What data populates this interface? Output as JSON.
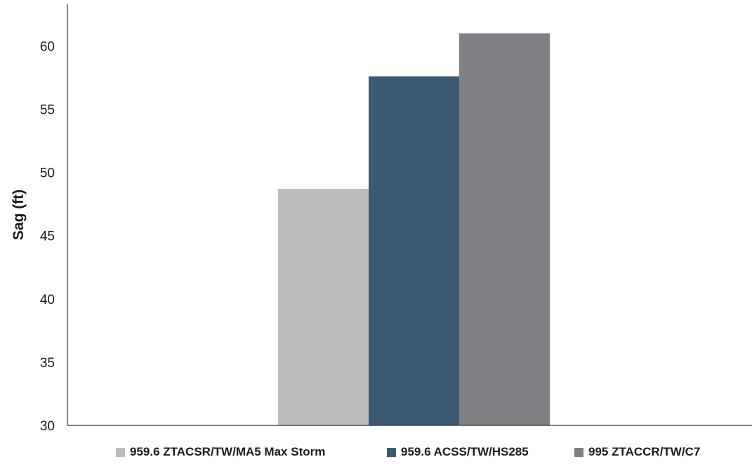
{
  "chart_data": {
    "type": "bar",
    "title": "",
    "xlabel": "",
    "ylabel": "Sag (ft)",
    "ylim": [
      30,
      63.3
    ],
    "yticks": [
      30,
      35,
      40,
      45,
      50,
      55,
      60
    ],
    "grid": false,
    "legend_position": "bottom",
    "series": [
      {
        "name": "959.6 ZTACSR/TW/MA5 Max Storm",
        "value": 48.7,
        "color": "#bcbcbf"
      },
      {
        "name": "959.6 ACSS/TW/HS285",
        "value": 57.6,
        "color": "#3d5a73"
      },
      {
        "name": "995 ZTACCR/TW/C7",
        "value": 61.0,
        "color": "#808184"
      }
    ]
  }
}
